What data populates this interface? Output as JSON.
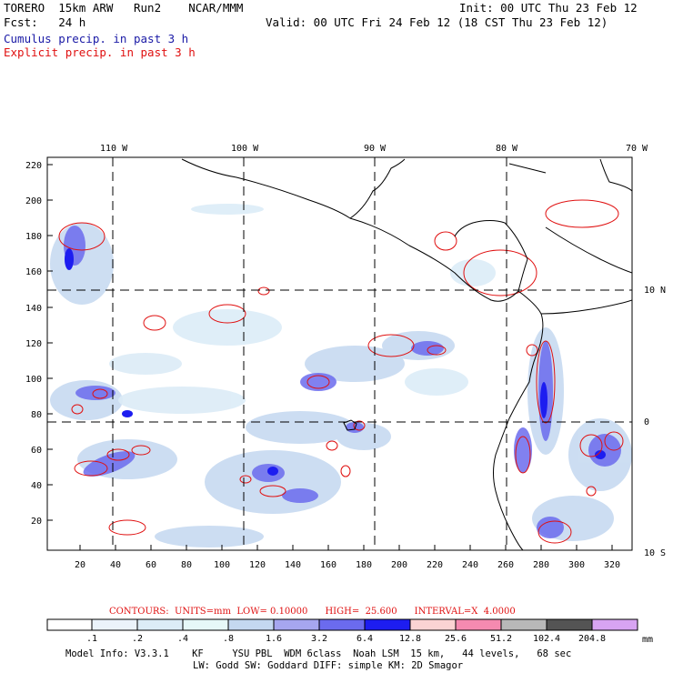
{
  "header": {
    "model": "TORERO  15km ARW   Run2    NCAR/MMM",
    "init": "Init: 00 UTC Thu 23 Feb 12",
    "fcst": "Fcst:   24 h",
    "valid": "Valid: 00 UTC Fri 24 Feb 12 (18 CST Thu 23 Feb 12)",
    "field1": "Cumulus precip. in past 3 h",
    "field2": "Explicit precip. in past 3 h"
  },
  "map": {
    "lon_labels": [
      "110 W",
      "100 W",
      "90 W",
      "80 W",
      "70 W"
    ],
    "lat_labels": [
      "10 N",
      "0",
      "10 S"
    ],
    "y_ticks": [
      "220",
      "200",
      "180",
      "160",
      "140",
      "120",
      "100",
      "80",
      "60",
      "40",
      "20"
    ],
    "x_ticks": [
      "20",
      "40",
      "60",
      "80",
      "100",
      "120",
      "140",
      "160",
      "180",
      "200",
      "220",
      "240",
      "260",
      "280",
      "300",
      "320"
    ]
  },
  "contours_line": "CONTOURS:  UNITS=mm  LOW= 0.10000      HIGH=  25.600      INTERVAL=X  4.0000",
  "colorbar": {
    "labels": [
      ".1",
      ".2",
      ".4",
      ".8",
      "1.6",
      "3.2",
      "6.4",
      "12.8",
      "25.6",
      "51.2",
      "102.4",
      "204.8"
    ],
    "unit": "mm",
    "colors": [
      "#ffffff",
      "#ebf3fb",
      "#dcecf7",
      "#e6f8f8",
      "#c4d8f0",
      "#a6a6ef",
      "#6b6bee",
      "#1d1df0",
      "#fbd3d3",
      "#f58ab0",
      "#b8b8b8",
      "#545454",
      "#d8a4f2"
    ]
  },
  "footer": {
    "line1": "Model Info: V3.3.1    KF     YSU PBL  WDM 6class  Noah LSM  15 km,   44 levels,   68 sec",
    "line2": "LW: Godd SW: Goddard DIFF: simple KM: 2D Smagor"
  }
}
